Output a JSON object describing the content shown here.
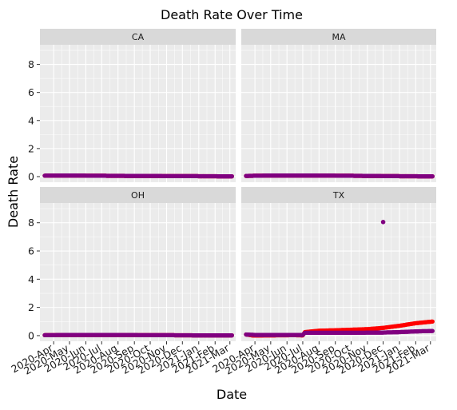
{
  "chart_data": {
    "type": "scatter",
    "title": "Death Rate Over Time",
    "xlabel": "Date",
    "ylabel": "Death Rate",
    "ylim": [
      -0.4,
      9.4
    ],
    "yticks": [
      0,
      2,
      4,
      6,
      8
    ],
    "xlim": [
      "2020-03-06",
      "2021-03-12"
    ],
    "xticks": [
      "2020-04-01",
      "2020-05-01",
      "2020-06-01",
      "2020-07-01",
      "2020-08-01",
      "2020-09-01",
      "2020-10-01",
      "2020-11-01",
      "2020-12-01",
      "2021-01-01",
      "2021-02-01",
      "2021-03-01"
    ],
    "xtick_labels": [
      "2020-Apr",
      "2020-May",
      "2020-Jun",
      "2020-Jul",
      "2020-Aug",
      "2020-Sep",
      "2020-Oct",
      "2020-Nov",
      "2020-Dec",
      "2021-Jan",
      "2021-Feb",
      "2021-Mar"
    ],
    "panels": [
      {
        "name": "CA",
        "series": [
          {
            "name": "red",
            "color": "#ff0000",
            "points": [
              [
                "2020-03-15",
                0.07
              ],
              [
                "2020-05-01",
                0.08
              ],
              [
                "2020-07-01",
                0.06
              ],
              [
                "2020-09-01",
                0.05
              ],
              [
                "2020-11-01",
                0.04
              ],
              [
                "2021-01-01",
                0.03
              ],
              [
                "2021-03-05",
                0.02
              ]
            ]
          },
          {
            "name": "purple",
            "color": "#800080",
            "points": [
              [
                "2020-03-15",
                0.07
              ],
              [
                "2020-05-01",
                0.08
              ],
              [
                "2020-07-01",
                0.06
              ],
              [
                "2020-09-01",
                0.05
              ],
              [
                "2020-11-01",
                0.04
              ],
              [
                "2021-01-01",
                0.03
              ],
              [
                "2021-03-05",
                0.02
              ]
            ]
          }
        ]
      },
      {
        "name": "MA",
        "series": [
          {
            "name": "red",
            "color": "#ff0000",
            "points": [
              [
                "2020-03-15",
                0.05
              ],
              [
                "2020-05-01",
                0.08
              ],
              [
                "2020-07-01",
                0.08
              ],
              [
                "2020-09-01",
                0.07
              ],
              [
                "2020-11-01",
                0.05
              ],
              [
                "2021-01-01",
                0.03
              ],
              [
                "2021-03-05",
                0.02
              ]
            ]
          },
          {
            "name": "purple",
            "color": "#800080",
            "points": [
              [
                "2020-03-15",
                0.05
              ],
              [
                "2020-05-01",
                0.08
              ],
              [
                "2020-07-01",
                0.08
              ],
              [
                "2020-09-01",
                0.07
              ],
              [
                "2020-11-01",
                0.05
              ],
              [
                "2021-01-01",
                0.03
              ],
              [
                "2021-03-05",
                0.02
              ]
            ]
          }
        ]
      },
      {
        "name": "OH",
        "series": [
          {
            "name": "red",
            "color": "#ff0000",
            "points": [
              [
                "2020-03-15",
                0.03
              ],
              [
                "2020-05-01",
                0.05
              ],
              [
                "2020-07-01",
                0.05
              ],
              [
                "2020-09-01",
                0.04
              ],
              [
                "2020-11-01",
                0.03
              ],
              [
                "2021-01-01",
                0.02
              ],
              [
                "2021-03-05",
                0.02
              ]
            ]
          },
          {
            "name": "purple",
            "color": "#800080",
            "points": [
              [
                "2020-03-15",
                0.03
              ],
              [
                "2020-05-01",
                0.05
              ],
              [
                "2020-07-01",
                0.05
              ],
              [
                "2020-09-01",
                0.04
              ],
              [
                "2020-11-01",
                0.03
              ],
              [
                "2021-01-01",
                0.02
              ],
              [
                "2021-03-05",
                0.02
              ]
            ]
          }
        ]
      },
      {
        "name": "TX",
        "series": [
          {
            "name": "red",
            "color": "#ff0000",
            "points": [
              [
                "2020-03-15",
                0.08
              ],
              [
                "2020-03-30",
                0.0
              ],
              [
                "2020-05-01",
                0.02
              ],
              [
                "2020-06-15",
                0.03
              ],
              [
                "2020-07-01",
                0.02
              ],
              [
                "2020-07-05",
                0.25
              ],
              [
                "2020-08-01",
                0.35
              ],
              [
                "2020-09-01",
                0.38
              ],
              [
                "2020-10-01",
                0.42
              ],
              [
                "2020-11-01",
                0.46
              ],
              [
                "2020-12-01",
                0.55
              ],
              [
                "2021-01-01",
                0.7
              ],
              [
                "2021-02-01",
                0.88
              ],
              [
                "2021-03-05",
                1.0
              ]
            ]
          },
          {
            "name": "purple",
            "color": "#800080",
            "points": [
              [
                "2020-03-15",
                0.08
              ],
              [
                "2020-04-01",
                0.05
              ],
              [
                "2020-05-01",
                0.05
              ],
              [
                "2020-06-15",
                0.05
              ],
              [
                "2020-07-01",
                0.05
              ],
              [
                "2020-07-05",
                0.2
              ],
              [
                "2020-08-01",
                0.2
              ],
              [
                "2020-09-01",
                0.2
              ],
              [
                "2020-10-01",
                0.2
              ],
              [
                "2020-11-01",
                0.21
              ],
              [
                "2020-12-01",
                0.22
              ],
              [
                "2021-01-01",
                0.25
              ],
              [
                "2021-02-01",
                0.3
              ],
              [
                "2021-03-05",
                0.33
              ]
            ]
          }
        ],
        "outliers": [
          {
            "date": "2020-12-01",
            "value": 8.05,
            "color": "#800080"
          }
        ]
      }
    ]
  }
}
